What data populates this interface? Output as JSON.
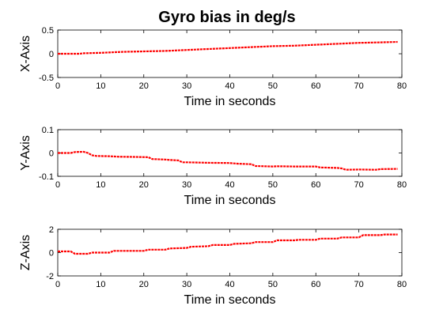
{
  "figure": {
    "title": "Gyro bias in deg/s"
  },
  "colors": {
    "series": "#ff0000",
    "axes": "#000000",
    "background": "#ffffff"
  },
  "chart_data": [
    {
      "type": "line",
      "title": "Gyro bias in deg/s",
      "xlabel": "Time in seconds",
      "ylabel": "X-Axis",
      "xlim": [
        0,
        80
      ],
      "ylim": [
        -0.5,
        0.5
      ],
      "xticks": [
        0,
        10,
        20,
        30,
        40,
        50,
        60,
        70,
        80
      ],
      "yticks": [
        -0.5,
        0,
        0.5
      ],
      "ytick_labels": [
        "-0.5",
        "0",
        "0.5"
      ],
      "grid": false,
      "series": [
        {
          "color": "#ff0000",
          "x": [
            0,
            5,
            6,
            10,
            15,
            20,
            25,
            30,
            35,
            40,
            45,
            50,
            55,
            60,
            65,
            70,
            75,
            79
          ],
          "y": [
            0.0,
            0.0,
            0.01,
            0.02,
            0.04,
            0.05,
            0.06,
            0.08,
            0.1,
            0.12,
            0.14,
            0.16,
            0.17,
            0.19,
            0.21,
            0.23,
            0.24,
            0.25
          ]
        }
      ]
    },
    {
      "type": "line",
      "title": "",
      "xlabel": "Time in seconds",
      "ylabel": "Y-Axis",
      "xlim": [
        0,
        80
      ],
      "ylim": [
        -0.1,
        0.1
      ],
      "xticks": [
        0,
        10,
        20,
        30,
        40,
        50,
        60,
        70,
        80
      ],
      "yticks": [
        -0.1,
        0,
        0.1
      ],
      "ytick_labels": [
        "-0.1",
        "0",
        "0.1"
      ],
      "grid": false,
      "series": [
        {
          "color": "#ff0000",
          "x": [
            0,
            3,
            4,
            6,
            7,
            8,
            9,
            12,
            14,
            18,
            21,
            22,
            25,
            26,
            28,
            29,
            30,
            35,
            40,
            42,
            45,
            46,
            50,
            51,
            55,
            60,
            61,
            65,
            66,
            67,
            70,
            74,
            75,
            79
          ],
          "y": [
            0.0,
            0.0,
            0.004,
            0.005,
            0.0,
            -0.01,
            -0.013,
            -0.014,
            -0.016,
            -0.017,
            -0.018,
            -0.026,
            -0.028,
            -0.03,
            -0.032,
            -0.04,
            -0.04,
            -0.042,
            -0.043,
            -0.046,
            -0.048,
            -0.056,
            -0.058,
            -0.057,
            -0.058,
            -0.058,
            -0.062,
            -0.064,
            -0.066,
            -0.072,
            -0.071,
            -0.072,
            -0.069,
            -0.068
          ]
        }
      ]
    },
    {
      "type": "line",
      "title": "",
      "xlabel": "Time in seconds",
      "ylabel": "Z-Axis",
      "xlim": [
        0,
        80
      ],
      "ylim": [
        -2,
        2
      ],
      "xticks": [
        0,
        10,
        20,
        30,
        40,
        50,
        60,
        70,
        80
      ],
      "yticks": [
        -2,
        0,
        2
      ],
      "ytick_labels": [
        "-2",
        "0",
        "2"
      ],
      "grid": false,
      "series": [
        {
          "color": "#ff0000",
          "x": [
            0,
            3,
            4,
            7,
            8,
            12,
            13,
            20,
            21,
            25,
            26,
            30,
            31,
            35,
            36,
            40,
            41,
            45,
            46,
            50,
            51,
            55,
            56,
            60,
            61,
            65,
            66,
            70,
            71,
            75,
            76,
            79
          ],
          "y": [
            0.1,
            0.1,
            -0.1,
            -0.1,
            0.0,
            0.0,
            0.15,
            0.15,
            0.25,
            0.25,
            0.35,
            0.4,
            0.5,
            0.55,
            0.65,
            0.65,
            0.75,
            0.8,
            0.9,
            0.9,
            1.05,
            1.05,
            1.1,
            1.1,
            1.2,
            1.2,
            1.3,
            1.3,
            1.5,
            1.5,
            1.55,
            1.55
          ]
        }
      ]
    }
  ]
}
